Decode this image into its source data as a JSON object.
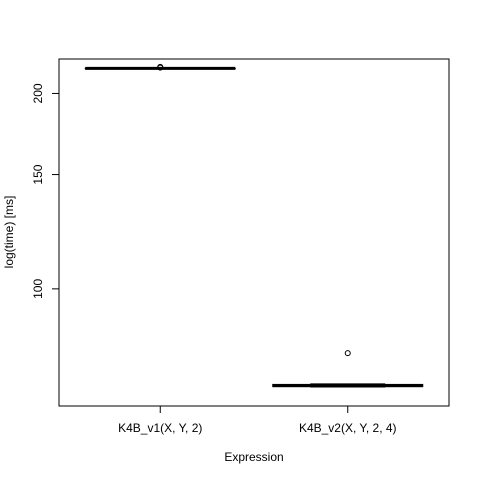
{
  "chart_data": {
    "type": "boxplot",
    "y_scale": "log",
    "xlabel": "Expression",
    "ylabel": "log(time) [ms]",
    "title": "",
    "yticks": [
      100,
      150,
      200
    ],
    "ylim": [
      66,
      226
    ],
    "colors": {
      "line": "#000000",
      "background": "#ffffff"
    },
    "series": [
      {
        "category": "K4B_v1(X, Y, 2)",
        "min": 218.5,
        "q1": 218.5,
        "median": 218.6,
        "q3": 218.7,
        "max": 218.9,
        "outliers": [
          219.2,
          219.5,
          219.8
        ]
      },
      {
        "category": "K4B_v2(X, Y, 2, 4)",
        "min": 70.6,
        "q1": 70.7,
        "median": 70.95,
        "q3": 71.25,
        "max": 71.4,
        "outliers": [
          79.6
        ]
      }
    ]
  }
}
